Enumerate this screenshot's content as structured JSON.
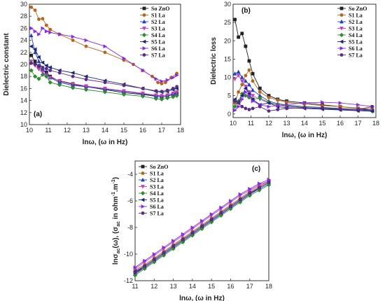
{
  "chart_data": [
    {
      "panel": "(a)",
      "type": "line",
      "xlabel": "lnω, (ω in Hz)",
      "ylabel": "Dielectric constant",
      "xlim": [
        10,
        18
      ],
      "ylim": [
        10,
        30
      ],
      "xticks": [
        10,
        11,
        12,
        13,
        14,
        15,
        16,
        17,
        18
      ],
      "yticks": [
        10,
        12,
        14,
        16,
        18,
        20,
        22,
        24,
        26,
        28,
        30
      ],
      "legend_position": "top-right",
      "series": [
        {
          "name": "So ZnO",
          "color": "#222222",
          "marker": "square",
          "x": [
            10.1,
            10.3,
            10.5,
            10.7,
            10.9,
            11.1,
            11.6,
            12.3,
            13.0,
            14.0,
            15.0,
            16.0,
            16.7,
            17.0,
            17.3,
            17.6,
            17.8
          ],
          "y": [
            21.5,
            20.5,
            19.5,
            19.0,
            18.7,
            18.0,
            17.2,
            16.7,
            16.3,
            15.8,
            15.3,
            15.0,
            14.7,
            14.6,
            14.7,
            15.0,
            15.2
          ]
        },
        {
          "name": "S1 La",
          "color": "#b5651d",
          "marker": "circle",
          "x": [
            10.1,
            10.3,
            10.5,
            10.7,
            10.9,
            11.1,
            11.6,
            12.3,
            13.0,
            14.0,
            15.0,
            15.5,
            16.0,
            16.5,
            16.8,
            17.0,
            17.2,
            17.5,
            17.8
          ],
          "y": [
            29.5,
            29.0,
            27.5,
            27.6,
            26.5,
            25.8,
            25.0,
            24.0,
            23.0,
            22.0,
            20.7,
            20.0,
            19.0,
            18.0,
            17.0,
            16.8,
            17.0,
            17.8,
            18.5
          ]
        },
        {
          "name": "S2 La",
          "color": "#1f3fbf",
          "marker": "triangle-up",
          "x": [
            10.1,
            10.3,
            10.5,
            10.7,
            10.9,
            11.1,
            11.6,
            12.3,
            13.0,
            14.0,
            15.0,
            16.0,
            16.7,
            17.0,
            17.3,
            17.6,
            17.8
          ],
          "y": [
            24.8,
            22.0,
            20.5,
            19.2,
            18.5,
            17.8,
            17.0,
            16.5,
            16.3,
            15.9,
            15.5,
            15.1,
            14.8,
            14.8,
            14.9,
            15.1,
            15.3
          ]
        },
        {
          "name": "S3 La",
          "color": "#c040c0",
          "marker": "triangle-down",
          "x": [
            10.1,
            10.3,
            10.5,
            10.7,
            10.9,
            11.1,
            11.6,
            12.3,
            13.0,
            14.0,
            15.0,
            16.0,
            16.7,
            17.0,
            17.3,
            17.6,
            17.8
          ],
          "y": [
            20.5,
            19.8,
            19.2,
            18.7,
            18.2,
            17.8,
            17.3,
            16.8,
            16.4,
            16.0,
            15.6,
            15.2,
            14.9,
            14.8,
            14.9,
            15.2,
            15.4
          ]
        },
        {
          "name": "S4 La",
          "color": "#2e8b2e",
          "marker": "diamond",
          "x": [
            10.1,
            10.3,
            10.5,
            10.7,
            10.9,
            11.1,
            11.6,
            12.3,
            13.0,
            14.0,
            15.0,
            16.0,
            16.7,
            17.0,
            17.3,
            17.6,
            17.8
          ],
          "y": [
            19.0,
            18.0,
            17.6,
            18.3,
            18.0,
            17.0,
            16.6,
            16.1,
            15.8,
            15.4,
            15.0,
            14.7,
            14.3,
            14.2,
            14.4,
            14.6,
            14.8
          ]
        },
        {
          "name": "S5 La",
          "color": "#1a237e",
          "marker": "triangle-left",
          "x": [
            10.1,
            10.3,
            10.5,
            10.7,
            10.9,
            11.1,
            11.6,
            12.3,
            13.0,
            14.0,
            15.0,
            16.0,
            16.7,
            17.0,
            17.3,
            17.6,
            17.8
          ],
          "y": [
            23.0,
            22.5,
            21.2,
            20.3,
            19.8,
            19.5,
            19.0,
            18.6,
            18.0,
            17.3,
            16.7,
            16.0,
            15.5,
            15.4,
            15.5,
            15.8,
            16.0
          ]
        },
        {
          "name": "S6 La",
          "color": "#8a2be2",
          "marker": "triangle-right",
          "x": [
            10.1,
            10.3,
            10.5,
            10.7,
            10.9,
            11.1,
            11.6,
            12.3,
            13.0,
            14.0,
            15.0,
            16.0,
            16.7,
            17.0,
            17.3,
            17.6,
            17.8
          ],
          "y": [
            26.0,
            25.5,
            25.0,
            26.0,
            25.5,
            25.3,
            25.0,
            24.6,
            24.0,
            23.0,
            21.0,
            19.0,
            17.6,
            17.2,
            17.4,
            17.8,
            18.2
          ]
        },
        {
          "name": "S7 La",
          "color": "#5b2c83",
          "marker": "circle",
          "x": [
            10.1,
            10.3,
            10.5,
            10.7,
            10.9,
            11.1,
            11.6,
            12.3,
            13.0,
            14.0,
            15.0,
            16.0,
            16.7,
            17.0,
            17.3,
            17.6,
            17.8
          ],
          "y": [
            20.2,
            20.0,
            19.8,
            19.5,
            19.3,
            19.0,
            18.6,
            18.0,
            17.5,
            17.0,
            16.5,
            16.0,
            15.6,
            15.5,
            15.7,
            16.0,
            16.3
          ]
        }
      ]
    },
    {
      "panel": "(b)",
      "type": "line",
      "xlabel": "lnω, (ω in Hz)",
      "ylabel": "Dielectric loss",
      "xlim": [
        10,
        18
      ],
      "ylim": [
        -1,
        30
      ],
      "xticks": [
        10,
        11,
        12,
        13,
        14,
        15,
        16,
        17,
        18
      ],
      "yticks": [
        0,
        5,
        10,
        15,
        20,
        25,
        30
      ],
      "legend_position": "top-right",
      "series": [
        {
          "name": "So ZnO",
          "color": "#222222",
          "marker": "square",
          "x": [
            10.1,
            10.3,
            10.5,
            10.7,
            10.9,
            11.1,
            11.5,
            12.0,
            12.5,
            13.0,
            14.0,
            15.0,
            16.0,
            17.0,
            17.8
          ],
          "y": [
            25.8,
            21.0,
            22.0,
            18.5,
            14.5,
            11.0,
            7.0,
            5.0,
            4.0,
            3.5,
            3.0,
            2.5,
            2.0,
            1.5,
            1.0
          ]
        },
        {
          "name": "S1 La",
          "color": "#b5651d",
          "marker": "circle",
          "x": [
            10.1,
            10.3,
            10.5,
            10.7,
            10.9,
            11.1,
            11.5,
            12.0,
            12.5,
            13.0,
            14.0,
            15.0,
            16.0,
            17.0,
            17.8
          ],
          "y": [
            3.0,
            6.0,
            8.0,
            10.5,
            12.0,
            9.0,
            6.0,
            4.5,
            3.8,
            3.2,
            2.7,
            2.3,
            2.0,
            1.6,
            1.3
          ]
        },
        {
          "name": "S2 La",
          "color": "#1f3fbf",
          "marker": "triangle-up",
          "x": [
            10.1,
            10.3,
            10.5,
            10.7,
            10.9,
            11.1,
            11.5,
            12.0,
            12.5,
            13.0,
            14.0,
            15.0,
            16.0,
            17.0,
            17.8
          ],
          "y": [
            11.0,
            11.5,
            10.0,
            9.0,
            8.0,
            6.5,
            5.0,
            3.5,
            2.8,
            2.4,
            2.0,
            1.8,
            1.5,
            1.2,
            1.0
          ]
        },
        {
          "name": "S3 La",
          "color": "#c040c0",
          "marker": "triangle-down",
          "x": [
            10.1,
            10.3,
            10.5,
            10.7,
            10.9,
            11.1,
            11.5,
            12.0,
            12.5,
            13.0,
            14.0,
            15.0,
            16.0,
            17.0,
            17.8
          ],
          "y": [
            9.5,
            10.5,
            9.0,
            7.5,
            6.0,
            5.0,
            4.0,
            3.0,
            2.5,
            2.0,
            1.7,
            1.5,
            1.3,
            1.0,
            0.8
          ]
        },
        {
          "name": "S4 La",
          "color": "#2e8b2e",
          "marker": "diamond",
          "x": [
            10.1,
            10.3,
            10.5,
            10.7,
            10.9,
            11.1,
            11.5,
            12.0,
            12.5,
            13.0,
            14.0,
            15.0,
            16.0,
            17.0,
            17.8
          ],
          "y": [
            2.0,
            3.5,
            5.5,
            5.0,
            4.5,
            4.0,
            4.3,
            3.2,
            2.5,
            2.2,
            1.8,
            1.5,
            1.2,
            0.9,
            0.7
          ]
        },
        {
          "name": "S5 La",
          "color": "#1a237e",
          "marker": "triangle-left",
          "x": [
            10.1,
            10.3,
            10.5,
            10.7,
            10.9,
            11.1,
            11.5,
            12.0,
            12.5,
            13.0,
            14.0,
            15.0,
            16.0,
            17.0,
            17.8
          ],
          "y": [
            4.0,
            3.0,
            5.0,
            7.0,
            5.5,
            4.0,
            2.5,
            3.0,
            2.0,
            1.7,
            1.5,
            1.3,
            1.1,
            0.9,
            0.8
          ]
        },
        {
          "name": "S6 La",
          "color": "#8a2be2",
          "marker": "triangle-right",
          "x": [
            10.1,
            10.3,
            10.5,
            10.7,
            10.9,
            11.1,
            11.5,
            12.0,
            12.5,
            13.0,
            14.0,
            15.0,
            16.0,
            17.0,
            17.8
          ],
          "y": [
            1.0,
            2.0,
            4.0,
            6.0,
            5.0,
            3.5,
            2.5,
            2.0,
            2.3,
            2.6,
            3.0,
            3.2,
            3.0,
            2.5,
            2.0
          ]
        },
        {
          "name": "S7 La",
          "color": "#5b2c83",
          "marker": "circle",
          "x": [
            10.1,
            10.3,
            10.5,
            10.7,
            10.9,
            11.1,
            11.5,
            12.0,
            12.5,
            13.0,
            14.0,
            15.0,
            16.0,
            17.0,
            17.8
          ],
          "y": [
            3.5,
            3.0,
            2.0,
            1.5,
            1.2,
            1.5,
            2.0,
            0.8,
            1.2,
            1.5,
            1.7,
            1.6,
            1.4,
            1.2,
            2.0
          ]
        }
      ]
    },
    {
      "panel": "(c)",
      "type": "line",
      "xlabel": "lnω, (ω in Hz)",
      "ylabel_main": "lnσ",
      "ylabel_sub1": "ac",
      "ylabel_mid": "(ω), (σ",
      "ylabel_sub2": "ac",
      "ylabel_rest": " in ohm",
      "ylabel_sup1": "-1",
      "ylabel_dot": ".m",
      "ylabel_sup2": "-1",
      "ylabel_end": ")",
      "xlim": [
        11,
        18
      ],
      "ylim": [
        -12,
        -3
      ],
      "xticks": [
        11,
        12,
        13,
        14,
        15,
        16,
        17,
        18
      ],
      "yticks": [
        -12,
        -10,
        -8,
        -6,
        -4
      ],
      "legend_position": "top-left",
      "series": [
        {
          "name": "So ZnO",
          "color": "#222222",
          "marker": "square",
          "x": [
            11.0,
            11.5,
            12.0,
            12.5,
            13.0,
            13.5,
            14.0,
            14.5,
            15.0,
            15.5,
            16.0,
            16.5,
            17.0,
            17.5,
            18.0
          ],
          "y": [
            -11.4,
            -11.0,
            -10.5,
            -10.0,
            -9.5,
            -9.0,
            -8.5,
            -8.0,
            -7.5,
            -7.0,
            -6.5,
            -6.0,
            -5.5,
            -5.0,
            -4.6
          ]
        },
        {
          "name": "S1 La",
          "color": "#b5651d",
          "marker": "circle",
          "x": [
            11.0,
            11.5,
            12.0,
            12.5,
            13.0,
            13.5,
            14.0,
            14.5,
            15.0,
            15.5,
            16.0,
            16.5,
            17.0,
            17.5,
            18.0
          ],
          "y": [
            -11.2,
            -10.8,
            -10.3,
            -9.8,
            -9.3,
            -8.8,
            -8.3,
            -7.8,
            -7.3,
            -6.8,
            -6.3,
            -5.8,
            -5.3,
            -4.9,
            -4.5
          ]
        },
        {
          "name": "S2 La",
          "color": "#1f3fbf",
          "marker": "triangle-up",
          "x": [
            11.0,
            11.5,
            12.0,
            12.5,
            13.0,
            13.5,
            14.0,
            14.5,
            15.0,
            15.5,
            16.0,
            16.5,
            17.0,
            17.5,
            18.0
          ],
          "y": [
            -11.5,
            -11.0,
            -10.5,
            -10.0,
            -9.5,
            -9.0,
            -8.5,
            -8.0,
            -7.5,
            -7.0,
            -6.5,
            -6.0,
            -5.5,
            -5.1,
            -4.7
          ]
        },
        {
          "name": "S3 La",
          "color": "#c040c0",
          "marker": "triangle-down",
          "x": [
            11.0,
            11.5,
            12.0,
            12.5,
            13.0,
            13.5,
            14.0,
            14.5,
            15.0,
            15.5,
            16.0,
            16.5,
            17.0,
            17.5,
            18.0
          ],
          "y": [
            -11.1,
            -10.6,
            -10.1,
            -9.6,
            -9.1,
            -8.6,
            -8.1,
            -7.6,
            -7.1,
            -6.6,
            -6.1,
            -5.6,
            -5.2,
            -4.8,
            -4.5
          ]
        },
        {
          "name": "S4 La",
          "color": "#2e8b2e",
          "marker": "diamond",
          "x": [
            11.0,
            11.5,
            12.0,
            12.5,
            13.0,
            13.5,
            14.0,
            14.5,
            15.0,
            15.5,
            16.0,
            16.5,
            17.0,
            17.5,
            18.0
          ],
          "y": [
            -11.6,
            -11.1,
            -10.6,
            -10.1,
            -9.6,
            -9.1,
            -8.6,
            -8.1,
            -7.6,
            -7.1,
            -6.6,
            -6.1,
            -5.6,
            -5.2,
            -4.8
          ]
        },
        {
          "name": "S5 La",
          "color": "#1a237e",
          "marker": "triangle-left",
          "x": [
            11.0,
            11.5,
            12.0,
            12.5,
            13.0,
            13.5,
            14.0,
            14.5,
            15.0,
            15.5,
            16.0,
            16.5,
            17.0,
            17.5,
            18.0
          ],
          "y": [
            -11.3,
            -10.9,
            -10.4,
            -9.9,
            -9.4,
            -8.9,
            -8.4,
            -7.9,
            -7.4,
            -6.9,
            -6.4,
            -5.9,
            -5.4,
            -5.0,
            -4.6
          ]
        },
        {
          "name": "S6 La",
          "color": "#8a2be2",
          "marker": "triangle-right",
          "x": [
            11.0,
            11.5,
            12.0,
            12.5,
            13.0,
            13.5,
            14.0,
            14.5,
            15.0,
            15.5,
            16.0,
            16.5,
            17.0,
            17.5,
            18.0
          ],
          "y": [
            -11.0,
            -10.5,
            -10.0,
            -9.5,
            -9.0,
            -8.5,
            -8.0,
            -7.5,
            -7.0,
            -6.5,
            -6.0,
            -5.5,
            -5.1,
            -4.7,
            -4.4
          ]
        },
        {
          "name": "S7 La",
          "color": "#5b2c83",
          "marker": "circle",
          "x": [
            11.0,
            11.5,
            12.0,
            12.5,
            13.0,
            13.5,
            14.0,
            14.5,
            15.0,
            15.5,
            16.0,
            16.5,
            17.0,
            17.5,
            18.0
          ],
          "y": [
            -11.4,
            -10.9,
            -10.4,
            -9.9,
            -9.4,
            -8.9,
            -8.4,
            -7.9,
            -7.4,
            -6.9,
            -6.4,
            -5.9,
            -5.4,
            -5.0,
            -4.6
          ]
        }
      ]
    }
  ]
}
